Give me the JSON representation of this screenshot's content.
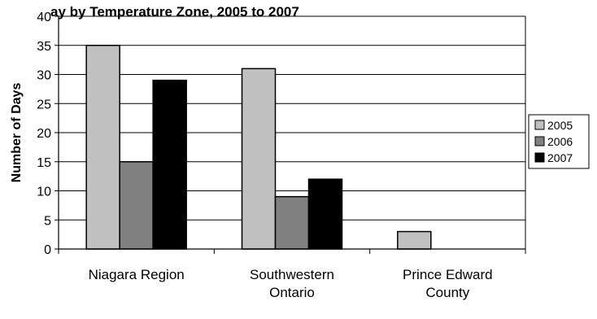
{
  "chart_data": {
    "type": "bar",
    "title": "(only the visible fragment of the title is shown) ay by Temperature Zone, 2005 to 2007",
    "title_visible": "ay by Temperature Zone, 2005 to 2007",
    "xlabel": "",
    "ylabel": "Number of Days",
    "ylim": [
      0,
      40
    ],
    "yticks": [
      0,
      5,
      10,
      15,
      20,
      25,
      30,
      35,
      40
    ],
    "grid": true,
    "legend_position": "right",
    "categories": [
      [
        "Niagara Region"
      ],
      [
        "Southwestern",
        "Ontario"
      ],
      [
        "Prince Edward",
        "County"
      ]
    ],
    "series": [
      {
        "name": "2005",
        "color": "#c0c0c0",
        "values": [
          35,
          31,
          3
        ]
      },
      {
        "name": "2006",
        "color": "#808080",
        "values": [
          15,
          9,
          0
        ]
      },
      {
        "name": "2007",
        "color": "#000000",
        "values": [
          29,
          12,
          0
        ]
      }
    ]
  }
}
